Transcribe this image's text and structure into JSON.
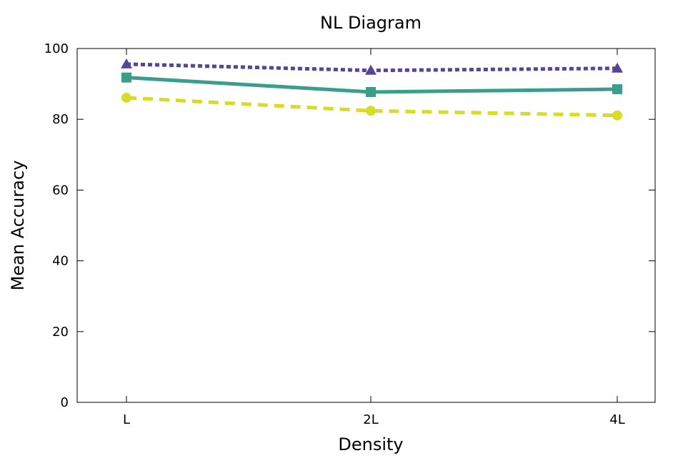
{
  "chart_data": {
    "type": "line",
    "title": "NL Diagram",
    "xlabel": "Density",
    "ylabel": "Mean Accuracy",
    "categories": [
      "L",
      "2L",
      "4L"
    ],
    "ylim": [
      0,
      100
    ],
    "yticks": [
      0,
      20,
      40,
      60,
      80,
      100
    ],
    "grid": false,
    "series": [
      {
        "values": [
          95.6,
          93.8,
          94.4
        ],
        "color": "#55449a",
        "dash": "dotted",
        "marker": "triangle"
      },
      {
        "values": [
          91.8,
          87.7,
          88.5
        ],
        "color": "#3a9e8a",
        "dash": "solid",
        "marker": "square"
      },
      {
        "values": [
          86.1,
          82.4,
          81.1
        ],
        "color": "#d7dc27",
        "dash": "dashed",
        "marker": "circle"
      }
    ]
  }
}
